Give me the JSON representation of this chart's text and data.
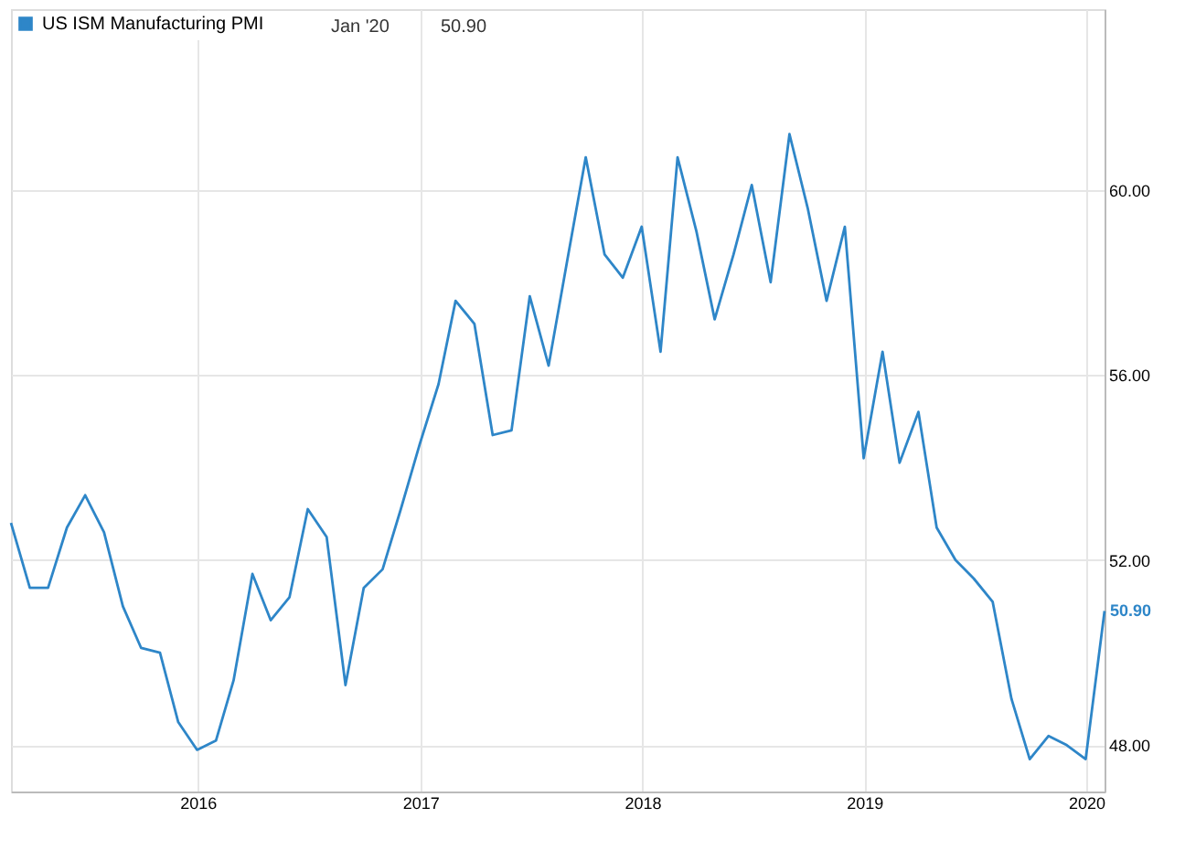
{
  "chart_data": {
    "type": "line",
    "x": [
      "2015-02-28",
      "2015-03-31",
      "2015-04-30",
      "2015-05-31",
      "2015-06-30",
      "2015-07-31",
      "2015-08-31",
      "2015-09-30",
      "2015-10-31",
      "2015-11-30",
      "2015-12-31",
      "2016-01-31",
      "2016-02-29",
      "2016-03-31",
      "2016-04-30",
      "2016-05-31",
      "2016-06-30",
      "2016-07-31",
      "2016-08-31",
      "2016-09-30",
      "2016-10-31",
      "2016-11-30",
      "2016-12-31",
      "2017-01-31",
      "2017-02-28",
      "2017-03-31",
      "2017-04-30",
      "2017-05-31",
      "2017-06-30",
      "2017-07-31",
      "2017-08-31",
      "2017-09-30",
      "2017-10-31",
      "2017-11-30",
      "2017-12-31",
      "2018-01-31",
      "2018-02-28",
      "2018-03-31",
      "2018-04-30",
      "2018-05-31",
      "2018-06-30",
      "2018-07-31",
      "2018-08-31",
      "2018-09-30",
      "2018-10-31",
      "2018-11-30",
      "2018-12-31",
      "2019-01-31",
      "2019-02-28",
      "2019-03-31",
      "2019-04-30",
      "2019-05-31",
      "2019-06-30",
      "2019-07-31",
      "2019-08-31",
      "2019-09-30",
      "2019-10-31",
      "2019-11-30",
      "2019-12-31",
      "2020-01-31"
    ],
    "series": [
      {
        "name": "US ISM Manufacturing PMI",
        "color": "#2e86c8",
        "values": [
          52.8,
          51.4,
          51.4,
          52.7,
          53.4,
          52.6,
          51.0,
          50.1,
          50.0,
          48.5,
          47.9,
          48.1,
          49.4,
          51.7,
          50.7,
          51.2,
          53.1,
          52.5,
          49.3,
          51.4,
          51.8,
          53.1,
          54.5,
          55.8,
          57.6,
          57.1,
          54.7,
          54.8,
          57.7,
          56.2,
          58.5,
          60.7,
          58.6,
          58.1,
          59.2,
          56.5,
          60.7,
          59.1,
          57.2,
          58.6,
          60.1,
          58.0,
          61.2,
          59.6,
          57.6,
          59.2,
          54.2,
          56.5,
          54.1,
          55.2,
          52.7,
          52.0,
          51.6,
          51.1,
          49.0,
          47.7,
          48.2,
          48.0,
          47.7,
          50.9
        ],
        "value_labels": [
          null,
          null,
          null,
          null,
          null,
          null,
          null,
          null,
          null,
          null,
          null,
          null,
          null,
          null,
          null,
          null,
          null,
          null,
          null,
          null,
          null,
          null,
          null,
          null,
          null,
          null,
          null,
          null,
          null,
          null,
          null,
          null,
          null,
          null,
          null,
          null,
          null,
          null,
          null,
          null,
          null,
          null,
          null,
          null,
          null,
          null,
          null,
          null,
          null,
          null,
          null,
          null,
          null,
          null,
          null,
          null,
          null,
          null,
          null,
          "50.90"
        ]
      }
    ],
    "xlim": [
      "2015-02-28",
      "2020-01-31"
    ],
    "xticks": [
      {
        "value": "2016",
        "label": "2016"
      },
      {
        "value": "2017",
        "label": "2017"
      },
      {
        "value": "2018",
        "label": "2018"
      },
      {
        "value": "2019",
        "label": "2019"
      },
      {
        "value": "2020",
        "label": "2020"
      }
    ],
    "ylim": [
      47,
      63.9
    ],
    "yticks": [
      {
        "value": 48,
        "label": "48.00"
      },
      {
        "value": 52,
        "label": "52.00"
      },
      {
        "value": 56,
        "label": "56.00"
      },
      {
        "value": 60,
        "label": "60.00"
      }
    ],
    "annotations": [
      "Jan '20",
      "50.90"
    ],
    "grid": true,
    "legend": "top left",
    "marker": "none",
    "line_style": "solid"
  }
}
